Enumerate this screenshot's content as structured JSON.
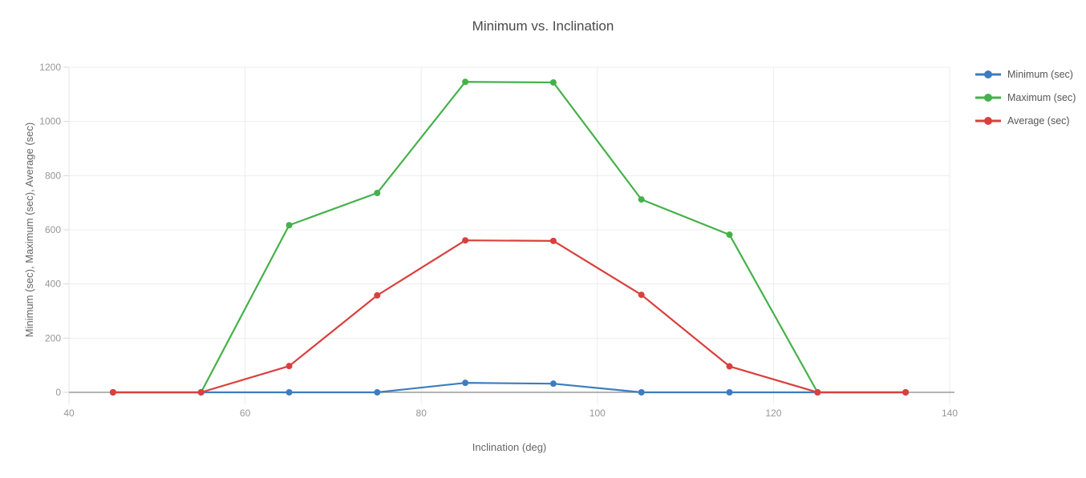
{
  "chart_data": {
    "type": "line",
    "title": "Minimum vs. Inclination",
    "xlabel": "Inclination (deg)",
    "ylabel": "Minimum (sec), Maximum (sec), Average (sec)",
    "x": [
      45,
      55,
      65,
      75,
      85,
      95,
      105,
      115,
      125,
      135
    ],
    "series": [
      {
        "name": "Minimum (sec)",
        "color": "#3D7DBF",
        "values": [
          0,
          0,
          0,
          0,
          35,
          32,
          0,
          0,
          0,
          0
        ]
      },
      {
        "name": "Maximum (sec)",
        "color": "#45B14A",
        "values": [
          0,
          0,
          617,
          736,
          1146,
          1144,
          712,
          582,
          0,
          0
        ]
      },
      {
        "name": "Average (sec)",
        "color": "#D9403D",
        "values": [
          0,
          0,
          97,
          358,
          561,
          559,
          360,
          96,
          0,
          0
        ]
      }
    ],
    "xlim": [
      40,
      140
    ],
    "ylim": [
      0,
      1200
    ],
    "x_ticks": [
      40,
      60,
      80,
      100,
      120,
      140
    ],
    "y_ticks": [
      0,
      200,
      400,
      600,
      800,
      1000,
      1200
    ],
    "grid": true,
    "legend_position": "right"
  },
  "colors": {
    "background": "#ffffff",
    "gridline": "#ededed",
    "axis_line": "#e4e4e4",
    "tick_mark": "#d8d8d8",
    "zero_line": "#9c9c9c",
    "title_text": "#4a4a4a",
    "axis_title_text": "#666666",
    "tick_text": "#969696",
    "legend_text": "#555555"
  }
}
